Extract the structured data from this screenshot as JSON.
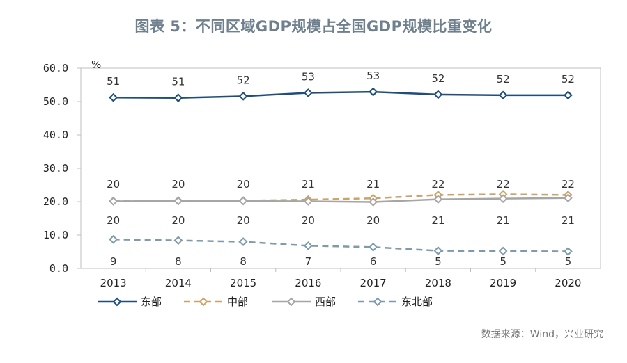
{
  "title": "图表 5：不同区域GDP规模占全国GDP规模比重变化",
  "source": "数据来源：Wind，兴业研究",
  "chart_data": {
    "type": "line",
    "title": "图表 5：不同区域GDP规模占全国GDP规模比重变化",
    "unit": "%",
    "ylim": [
      0,
      60
    ],
    "y_ticks": [
      "0.0",
      "10.0",
      "20.0",
      "30.0",
      "40.0",
      "50.0",
      "60.0"
    ],
    "categories": [
      "2013",
      "2014",
      "2015",
      "2016",
      "2017",
      "2018",
      "2019",
      "2020"
    ],
    "series": [
      {
        "name": "东部",
        "color": "#1f4e79",
        "dash": "solid",
        "values": [
          51.2,
          51.1,
          51.6,
          52.6,
          52.9,
          52.1,
          51.9,
          51.9
        ],
        "labels": [
          "51",
          "51",
          "52",
          "53",
          "53",
          "52",
          "52",
          "52"
        ]
      },
      {
        "name": "中部",
        "color": "#c8a46a",
        "dash": "dashed",
        "values": [
          20.2,
          20.3,
          20.3,
          20.6,
          21.0,
          22.0,
          22.2,
          22.0
        ],
        "labels": [
          "20",
          "20",
          "20",
          "21",
          "21",
          "22",
          "22",
          "22"
        ]
      },
      {
        "name": "西部",
        "color": "#a6a6a6",
        "dash": "solid",
        "values": [
          20.1,
          20.2,
          20.2,
          20.1,
          19.9,
          20.7,
          20.9,
          21.1
        ],
        "labels": [
          "20",
          "20",
          "20",
          "20",
          "20",
          "21",
          "21",
          "21"
        ]
      },
      {
        "name": "东北部",
        "color": "#7f9aaa",
        "dash": "dashed",
        "values": [
          8.7,
          8.4,
          8.0,
          6.8,
          6.4,
          5.3,
          5.2,
          5.1
        ],
        "labels": [
          "9",
          "8",
          "8",
          "7",
          "6",
          "5",
          "5",
          "5"
        ]
      }
    ]
  }
}
